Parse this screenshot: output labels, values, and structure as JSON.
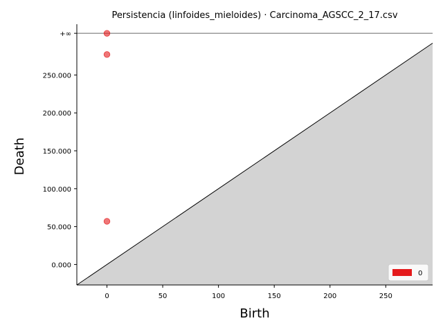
{
  "chart_data": {
    "type": "scatter",
    "title": "Persistencia (linfoides_mieloides) · Carcinoma_AGSCC_2_17.csv",
    "xlabel": "Birth",
    "ylabel": "Death",
    "xlim": [
      -27,
      292
    ],
    "ylim": [
      -27,
      317
    ],
    "x_ticks": [
      {
        "value": 0,
        "label": "0"
      },
      {
        "value": 50,
        "label": "50"
      },
      {
        "value": 100,
        "label": "100"
      },
      {
        "value": 150,
        "label": "150"
      },
      {
        "value": 200,
        "label": "200"
      },
      {
        "value": 250,
        "label": "250"
      }
    ],
    "y_ticks": [
      {
        "value": 0,
        "label": "0.000"
      },
      {
        "value": 50,
        "label": "50.000"
      },
      {
        "value": 100,
        "label": "100.000"
      },
      {
        "value": 150,
        "label": "150.000"
      },
      {
        "value": 200,
        "label": "200.000"
      },
      {
        "value": 250,
        "label": "250.000"
      }
    ],
    "infinity": {
      "value": 305,
      "label": "+∞"
    },
    "series": [
      {
        "name": "0",
        "color": "#e41a1c",
        "points": [
          {
            "x": 0,
            "y": 57
          },
          {
            "x": 0,
            "y": 277
          },
          {
            "x": 0,
            "y": 305,
            "infinite": true
          }
        ]
      }
    ],
    "diagonal": true,
    "grid": false,
    "legend_position": "bottom-right",
    "colors": {
      "diagonal_fill": "#d3d3d3",
      "infinity_line": "#666666",
      "point": "#e41a1c"
    }
  }
}
